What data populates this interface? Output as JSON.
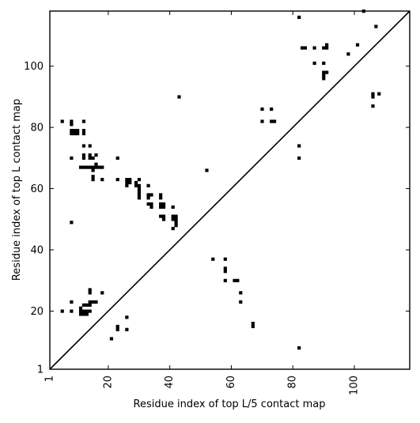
{
  "chart_data": {
    "type": "scatter",
    "xlabel": "Residue index of top L/5 contact map",
    "ylabel": "Residue index of top L contact map",
    "xlim": [
      1,
      118
    ],
    "ylim": [
      1,
      118
    ],
    "xticks": [
      {
        "value": 1,
        "label": "1"
      },
      {
        "value": 20,
        "label": "20"
      },
      {
        "value": 40,
        "label": "40"
      },
      {
        "value": 60,
        "label": "60"
      },
      {
        "value": 80,
        "label": "80"
      },
      {
        "value": 100,
        "label": "100"
      }
    ],
    "yticks": [
      {
        "value": 1,
        "label": "1"
      },
      {
        "value": 20,
        "label": "20"
      },
      {
        "value": 40,
        "label": "40"
      },
      {
        "value": 60,
        "label": "60"
      },
      {
        "value": 80,
        "label": "80"
      },
      {
        "value": 100,
        "label": "100"
      }
    ],
    "diagonal": true,
    "grid": false,
    "marker_color": "#000000",
    "upper_points": [
      [
        5,
        82
      ],
      [
        8,
        82
      ],
      [
        8,
        81
      ],
      [
        8,
        79
      ],
      [
        8,
        78
      ],
      [
        9,
        79
      ],
      [
        9,
        78
      ],
      [
        10,
        79
      ],
      [
        10,
        78
      ],
      [
        12,
        82
      ],
      [
        12,
        79
      ],
      [
        12,
        78
      ],
      [
        12,
        74
      ],
      [
        14,
        74
      ],
      [
        8,
        70
      ],
      [
        12,
        71
      ],
      [
        12,
        70
      ],
      [
        14,
        71
      ],
      [
        14,
        70
      ],
      [
        15,
        70
      ],
      [
        16,
        71
      ],
      [
        23,
        70
      ],
      [
        11,
        67
      ],
      [
        12,
        67
      ],
      [
        13,
        67
      ],
      [
        14,
        67
      ],
      [
        15,
        67
      ],
      [
        16,
        67
      ],
      [
        17,
        67
      ],
      [
        18,
        67
      ],
      [
        15,
        66
      ],
      [
        16,
        68
      ],
      [
        15,
        64
      ],
      [
        15,
        63
      ],
      [
        18,
        63
      ],
      [
        23,
        63
      ],
      [
        26,
        63
      ],
      [
        27,
        63
      ],
      [
        26,
        62
      ],
      [
        27,
        62
      ],
      [
        26,
        61
      ],
      [
        29,
        62
      ],
      [
        30,
        63
      ],
      [
        29,
        61
      ],
      [
        30,
        61
      ],
      [
        30,
        60
      ],
      [
        30,
        59
      ],
      [
        30,
        58
      ],
      [
        30,
        57
      ],
      [
        33,
        61
      ],
      [
        33,
        58
      ],
      [
        34,
        58
      ],
      [
        33,
        57
      ],
      [
        33,
        55
      ],
      [
        34,
        55
      ],
      [
        34,
        54
      ],
      [
        37,
        58
      ],
      [
        37,
        57
      ],
      [
        37,
        55
      ],
      [
        38,
        55
      ],
      [
        37,
        54
      ],
      [
        38,
        54
      ],
      [
        37,
        51
      ],
      [
        38,
        51
      ],
      [
        38,
        50
      ],
      [
        41,
        54
      ],
      [
        41,
        51
      ],
      [
        42,
        51
      ],
      [
        41,
        50
      ],
      [
        42,
        50
      ],
      [
        42,
        49
      ],
      [
        42,
        48
      ],
      [
        41,
        47
      ],
      [
        8,
        49
      ],
      [
        43,
        90
      ],
      [
        52,
        66
      ],
      [
        70,
        86
      ],
      [
        73,
        86
      ],
      [
        70,
        82
      ],
      [
        73,
        82
      ],
      [
        74,
        82
      ],
      [
        82,
        116
      ],
      [
        83,
        106
      ],
      [
        84,
        106
      ],
      [
        87,
        106
      ],
      [
        90,
        106
      ],
      [
        91,
        107
      ],
      [
        91,
        106
      ],
      [
        87,
        101
      ],
      [
        90,
        101
      ],
      [
        90,
        98
      ],
      [
        91,
        98
      ],
      [
        90,
        97
      ],
      [
        90,
        96
      ],
      [
        98,
        104
      ],
      [
        101,
        107
      ],
      [
        103,
        118
      ],
      [
        107,
        113
      ],
      [
        106,
        91
      ],
      [
        106,
        90
      ],
      [
        108,
        91
      ],
      [
        106,
        87
      ],
      [
        82,
        74
      ],
      [
        82,
        70
      ]
    ],
    "lower_points": [
      [
        5,
        20
      ],
      [
        8,
        23
      ],
      [
        8,
        20
      ],
      [
        11,
        21
      ],
      [
        11,
        20
      ],
      [
        12,
        20
      ],
      [
        13,
        20
      ],
      [
        14,
        20
      ],
      [
        11,
        19
      ],
      [
        12,
        19
      ],
      [
        13,
        19
      ],
      [
        12,
        22
      ],
      [
        13,
        22
      ],
      [
        14,
        22
      ],
      [
        14,
        23
      ],
      [
        15,
        23
      ],
      [
        16,
        23
      ],
      [
        14,
        27
      ],
      [
        14,
        26
      ],
      [
        18,
        26
      ],
      [
        21,
        11
      ],
      [
        23,
        15
      ],
      [
        23,
        14
      ],
      [
        26,
        18
      ],
      [
        26,
        14
      ],
      [
        54,
        37
      ],
      [
        58,
        37
      ],
      [
        58,
        34
      ],
      [
        58,
        33
      ],
      [
        58,
        30
      ],
      [
        61,
        30
      ],
      [
        62,
        30
      ],
      [
        63,
        26
      ],
      [
        63,
        23
      ],
      [
        67,
        16
      ],
      [
        67,
        15
      ],
      [
        82,
        8
      ]
    ]
  }
}
